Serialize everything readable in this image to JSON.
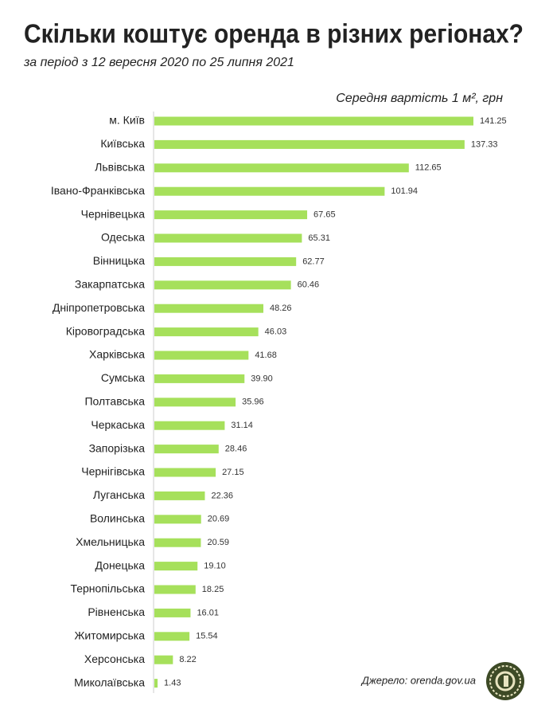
{
  "chart_data": {
    "type": "bar",
    "orientation": "horizontal",
    "title": "Скільки коштує оренда в різних регіонах?",
    "subtitle": "за період з 12 вересня 2020 по 25 липня 2021",
    "value_axis_title": "Середня вартість 1 м², грн",
    "source": "Джерело: orenda.gov.ua",
    "color": "#a6e05b",
    "categories": [
      "м. Київ",
      "Київська",
      "Львівська",
      "Івано-Франківська",
      "Чернівецька",
      "Одеська",
      "Вінницька",
      "Закарпатська",
      "Дніпропетровська",
      "Кіровоградська",
      "Харківська",
      "Сумська",
      "Полтавська",
      "Черкаська",
      "Запорізька",
      "Чернігівська",
      "Луганська",
      "Волинська",
      "Хмельницька",
      "Донецька",
      "Тернопільська",
      "Рівненська",
      "Житомирська",
      "Херсонська",
      "Миколаївська"
    ],
    "values": [
      141.25,
      137.33,
      112.65,
      101.94,
      67.65,
      65.31,
      62.77,
      60.46,
      48.26,
      46.03,
      41.68,
      39.9,
      35.96,
      31.14,
      28.46,
      27.15,
      22.36,
      20.69,
      20.59,
      19.1,
      18.25,
      16.01,
      15.54,
      8.22,
      1.43
    ],
    "value_labels": [
      "141.25",
      "137.33",
      "112.65",
      "101.94",
      "67.65",
      "65.31",
      "62.77",
      "60.46",
      "48.26",
      "46.03",
      "41.68",
      "39.90",
      "35.96",
      "31.14",
      "28.46",
      "27.15",
      "22.36",
      "20.69",
      "20.59",
      "19.10",
      "18.25",
      "16.01",
      "15.54",
      "8.22",
      "1.43"
    ]
  }
}
